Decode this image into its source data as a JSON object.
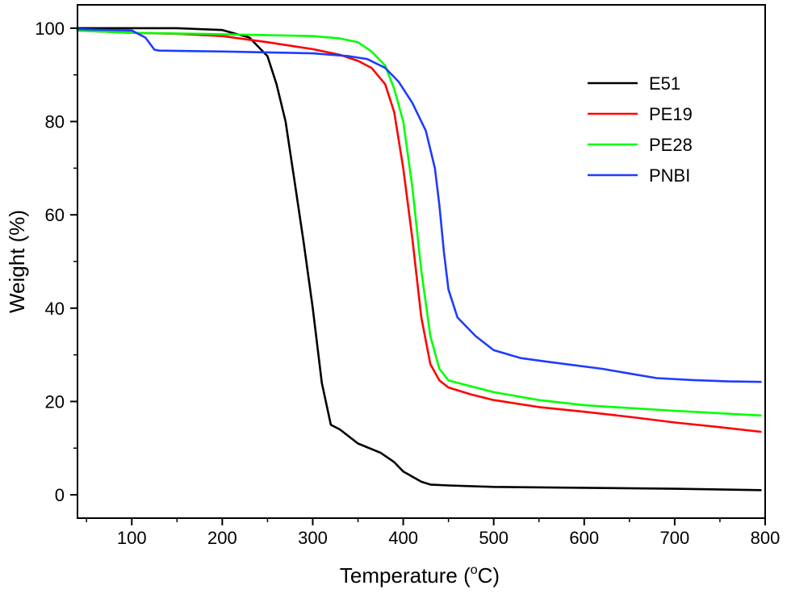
{
  "chart_data": {
    "type": "line",
    "title": "",
    "xlabel": "Temperature (",
    "xlabel_sup": "o",
    "xlabel_suffix": "C)",
    "ylabel": "Weight (%)",
    "xlim": [
      40,
      800
    ],
    "ylim": [
      -5,
      105
    ],
    "xticks": [
      100,
      200,
      300,
      400,
      500,
      600,
      700,
      800
    ],
    "yticks": [
      0,
      20,
      40,
      60,
      80,
      100
    ],
    "grid": false,
    "legend_position": "top-right",
    "series": [
      {
        "name": "E51",
        "color": "#000000",
        "points": [
          [
            40,
            100
          ],
          [
            100,
            100
          ],
          [
            150,
            100
          ],
          [
            200,
            99.6
          ],
          [
            230,
            98
          ],
          [
            250,
            94
          ],
          [
            260,
            88
          ],
          [
            270,
            80
          ],
          [
            280,
            67
          ],
          [
            290,
            54
          ],
          [
            300,
            40
          ],
          [
            310,
            24
          ],
          [
            320,
            15
          ],
          [
            330,
            14
          ],
          [
            350,
            11
          ],
          [
            375,
            9
          ],
          [
            390,
            7
          ],
          [
            400,
            5
          ],
          [
            420,
            2.8
          ],
          [
            430,
            2.2
          ],
          [
            450,
            2.0
          ],
          [
            500,
            1.7
          ],
          [
            600,
            1.5
          ],
          [
            700,
            1.3
          ],
          [
            795,
            1.0
          ]
        ]
      },
      {
        "name": "PE19",
        "color": "#ff0000",
        "points": [
          [
            40,
            99.5
          ],
          [
            100,
            99
          ],
          [
            150,
            98.8
          ],
          [
            200,
            98.3
          ],
          [
            250,
            97
          ],
          [
            300,
            95.5
          ],
          [
            330,
            94.3
          ],
          [
            350,
            93
          ],
          [
            365,
            91.5
          ],
          [
            380,
            88
          ],
          [
            390,
            82
          ],
          [
            400,
            70
          ],
          [
            410,
            55
          ],
          [
            420,
            38
          ],
          [
            430,
            28
          ],
          [
            440,
            24.5
          ],
          [
            450,
            23
          ],
          [
            475,
            21.5
          ],
          [
            500,
            20.3
          ],
          [
            550,
            18.8
          ],
          [
            600,
            17.8
          ],
          [
            650,
            16.7
          ],
          [
            700,
            15.5
          ],
          [
            750,
            14.5
          ],
          [
            795,
            13.5
          ]
        ]
      },
      {
        "name": "PE28",
        "color": "#00ff00",
        "points": [
          [
            40,
            99.5
          ],
          [
            100,
            99
          ],
          [
            200,
            98.7
          ],
          [
            300,
            98.3
          ],
          [
            330,
            97.8
          ],
          [
            350,
            97
          ],
          [
            365,
            95
          ],
          [
            380,
            92
          ],
          [
            390,
            87
          ],
          [
            400,
            80
          ],
          [
            410,
            66
          ],
          [
            420,
            48
          ],
          [
            430,
            34
          ],
          [
            440,
            27
          ],
          [
            450,
            24.5
          ],
          [
            470,
            23.5
          ],
          [
            500,
            22
          ],
          [
            550,
            20.3
          ],
          [
            600,
            19.2
          ],
          [
            700,
            18
          ],
          [
            795,
            17
          ]
        ]
      },
      {
        "name": "PNBI",
        "color": "#1e3cff",
        "points": [
          [
            40,
            99.8
          ],
          [
            100,
            99.5
          ],
          [
            115,
            98
          ],
          [
            125,
            95.4
          ],
          [
            130,
            95.2
          ],
          [
            200,
            95
          ],
          [
            300,
            94.6
          ],
          [
            340,
            94
          ],
          [
            360,
            93.4
          ],
          [
            380,
            91.5
          ],
          [
            395,
            88.5
          ],
          [
            410,
            84
          ],
          [
            425,
            78
          ],
          [
            435,
            70
          ],
          [
            440,
            62
          ],
          [
            445,
            52
          ],
          [
            450,
            44
          ],
          [
            460,
            38
          ],
          [
            480,
            34
          ],
          [
            500,
            31
          ],
          [
            530,
            29.3
          ],
          [
            560,
            28.5
          ],
          [
            620,
            27
          ],
          [
            650,
            26
          ],
          [
            680,
            25
          ],
          [
            720,
            24.6
          ],
          [
            760,
            24.3
          ],
          [
            795,
            24.2
          ]
        ]
      }
    ]
  }
}
